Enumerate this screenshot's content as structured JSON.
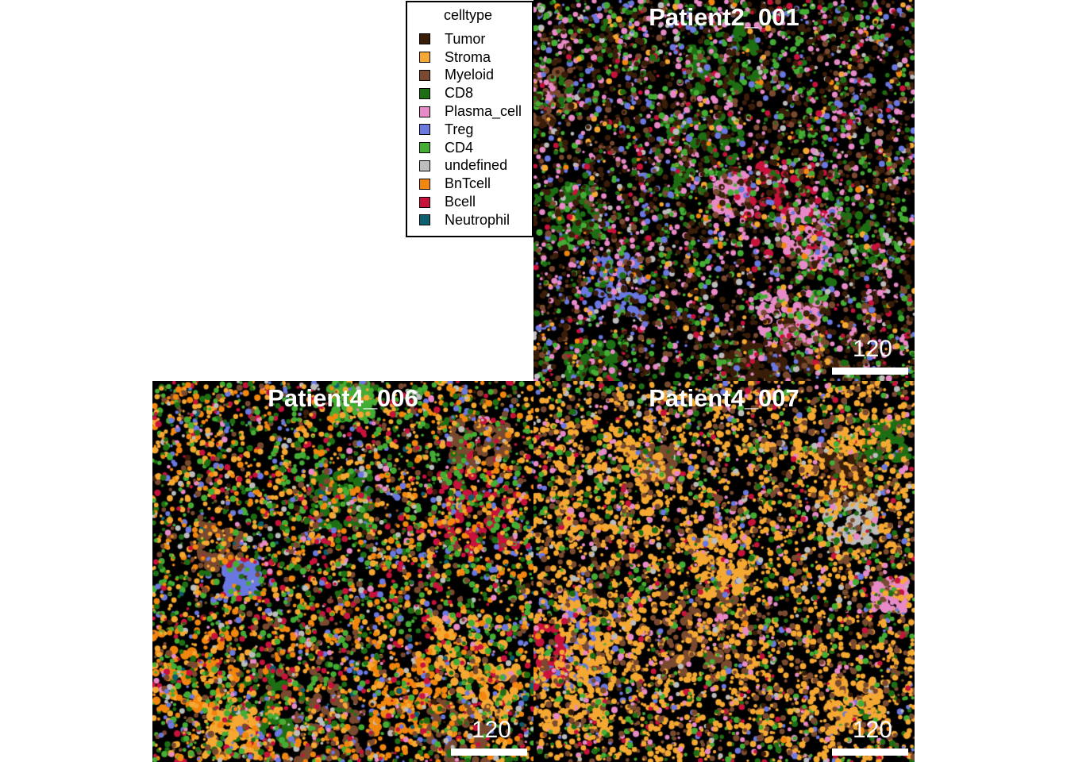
{
  "legend": {
    "title": "celltype",
    "items": [
      {
        "label": "Tumor",
        "color": "#3b1e0a"
      },
      {
        "label": "Stroma",
        "color": "#f5a832"
      },
      {
        "label": "Myeloid",
        "color": "#7a4a30"
      },
      {
        "label": "CD8",
        "color": "#1e6e14"
      },
      {
        "label": "Plasma_cell",
        "color": "#e88ac8"
      },
      {
        "label": "Treg",
        "color": "#6a78e0"
      },
      {
        "label": "CD4",
        "color": "#44ad34"
      },
      {
        "label": "undefined",
        "color": "#bdbdbd"
      },
      {
        "label": "BnTcell",
        "color": "#f2860e"
      },
      {
        "label": "Bcell",
        "color": "#c8123c"
      },
      {
        "label": "Neutrophil",
        "color": "#0b5f6e"
      }
    ]
  },
  "panels": [
    {
      "title": "Patient2_001",
      "scale_label": "120",
      "weights": [
        0.35,
        0.04,
        0.1,
        0.1,
        0.15,
        0.07,
        0.15,
        0.04,
        0.02,
        0.05,
        0.0
      ]
    },
    {
      "title": "Patient4_006",
      "scale_label": "120",
      "weights": [
        0.02,
        0.2,
        0.12,
        0.12,
        0.03,
        0.08,
        0.18,
        0.05,
        0.18,
        0.09,
        0.01
      ]
    },
    {
      "title": "Patient4_007",
      "scale_label": "120",
      "weights": [
        0.02,
        0.45,
        0.2,
        0.08,
        0.07,
        0.03,
        0.08,
        0.03,
        0.01,
        0.04,
        0.0
      ]
    }
  ]
}
